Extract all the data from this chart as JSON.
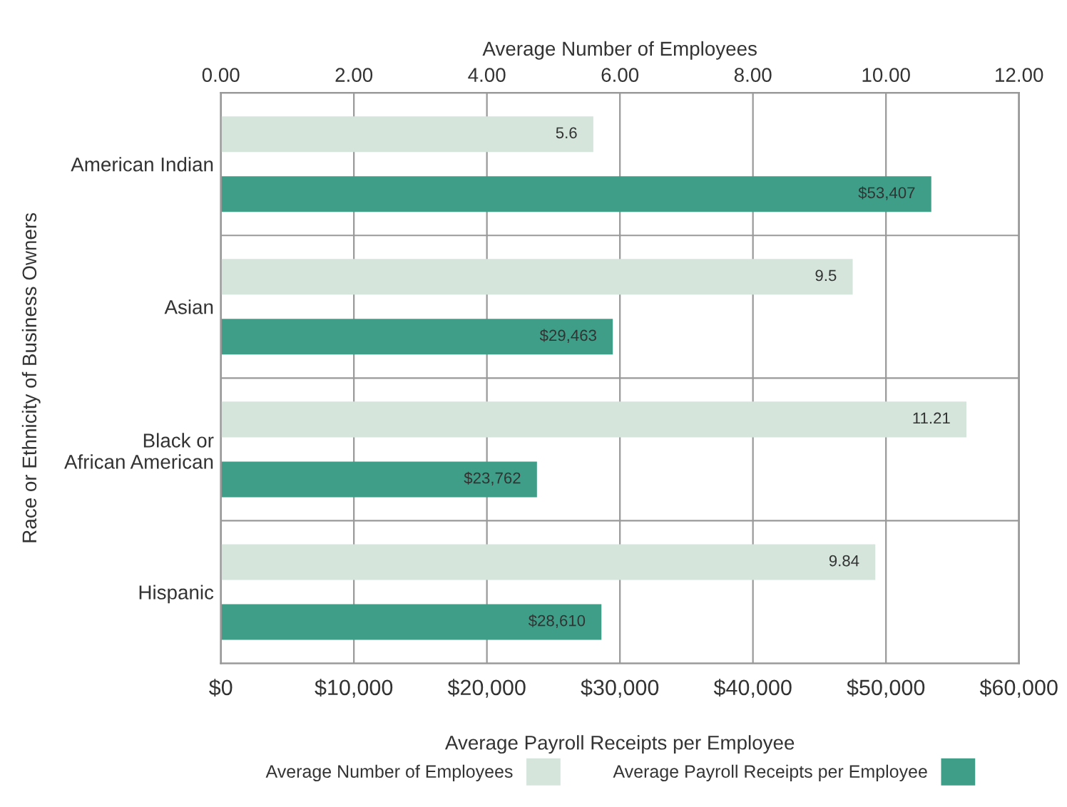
{
  "chart_data": {
    "type": "bar",
    "orientation": "horizontal",
    "ylabel": "Race or Ethnicity of Business Owners",
    "xlabel": "Average Payroll Receipts per Employee",
    "x2label": "Average Number of Employees",
    "categories": [
      "American Indian",
      "Asian",
      "Black or\nAfrican American",
      "Hispanic"
    ],
    "series": [
      {
        "name": "Average Number of Employees",
        "color": "#d5e5dc",
        "axis": "x2",
        "values": [
          5.6,
          9.5,
          11.21,
          9.84
        ],
        "value_labels": [
          "5.6",
          "9.5",
          "11.21",
          "9.84"
        ]
      },
      {
        "name": "Average Payroll Receipts per Employee",
        "color": "#3f9e88",
        "values": [
          53407,
          29463,
          23762,
          28610
        ],
        "value_labels": [
          "$53,407",
          "$29,463",
          "$23,762",
          "$28,610"
        ]
      }
    ],
    "xlim": [
      0,
      60000
    ],
    "xticks": [
      {
        "value": 0,
        "label": "$0"
      },
      {
        "value": 10000,
        "label": "$10,000"
      },
      {
        "value": 20000,
        "label": "$20,000"
      },
      {
        "value": 30000,
        "label": "$30,000"
      },
      {
        "value": 40000,
        "label": "$40,000"
      },
      {
        "value": 50000,
        "label": "$50,000"
      },
      {
        "value": 60000,
        "label": "$60,000"
      }
    ],
    "x2lim": [
      0,
      12
    ],
    "x2ticks": [
      {
        "value": 0,
        "label": "0.00"
      },
      {
        "value": 2,
        "label": "2.00"
      },
      {
        "value": 4,
        "label": "4.00"
      },
      {
        "value": 6,
        "label": "6.00"
      },
      {
        "value": 8,
        "label": "8.00"
      },
      {
        "value": 10,
        "label": "10.00"
      },
      {
        "value": 12,
        "label": "12.00"
      }
    ],
    "grid": true,
    "legend": "bottom"
  }
}
